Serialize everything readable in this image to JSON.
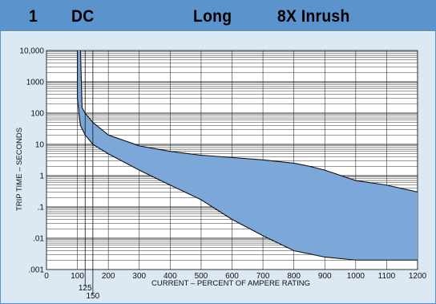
{
  "header": {
    "number": "1",
    "type": "DC",
    "delay": "Long",
    "inrush": "8X Inrush"
  },
  "chart_data": {
    "type": "area",
    "xlabel": "CURRENT – PERCENT OF AMPERE RATING",
    "ylabel": "TRIP TIME – SECONDS",
    "xlim": [
      0,
      1200
    ],
    "ylim": [
      0.001,
      10000
    ],
    "y_scale": "log",
    "grid": true,
    "x_ticks": [
      "0",
      "100",
      "200",
      "300",
      "400",
      "500",
      "600",
      "700",
      "800",
      "900",
      "1000",
      "1100",
      "1200"
    ],
    "y_ticks": [
      "10,000",
      "1000",
      "100",
      "10",
      "1",
      ".1",
      ".01",
      ".001"
    ],
    "extra_x_marks": [
      "125",
      "150"
    ],
    "band_color": "#7ba7d9",
    "series": [
      {
        "x": [
          110,
          115,
          125,
          150,
          200,
          300,
          400,
          500,
          600,
          700,
          800,
          850,
          900,
          1000,
          1100,
          1200
        ],
        "values": [
          10000,
          150,
          100,
          50,
          20,
          9,
          6,
          4.5,
          3.8,
          3.2,
          2.5,
          2,
          1.5,
          0.7,
          0.5,
          0.3
        ]
      },
      {
        "x": [
          100,
          100,
          105,
          110,
          125,
          150,
          200,
          300,
          400,
          500,
          600,
          700,
          800,
          900,
          1000,
          1100,
          1200
        ],
        "values": [
          10000,
          300,
          100,
          40,
          20,
          10,
          5,
          1.5,
          0.5,
          0.17,
          0.04,
          0.012,
          0.004,
          0.0025,
          0.002,
          0.002,
          0.002
        ]
      }
    ]
  }
}
